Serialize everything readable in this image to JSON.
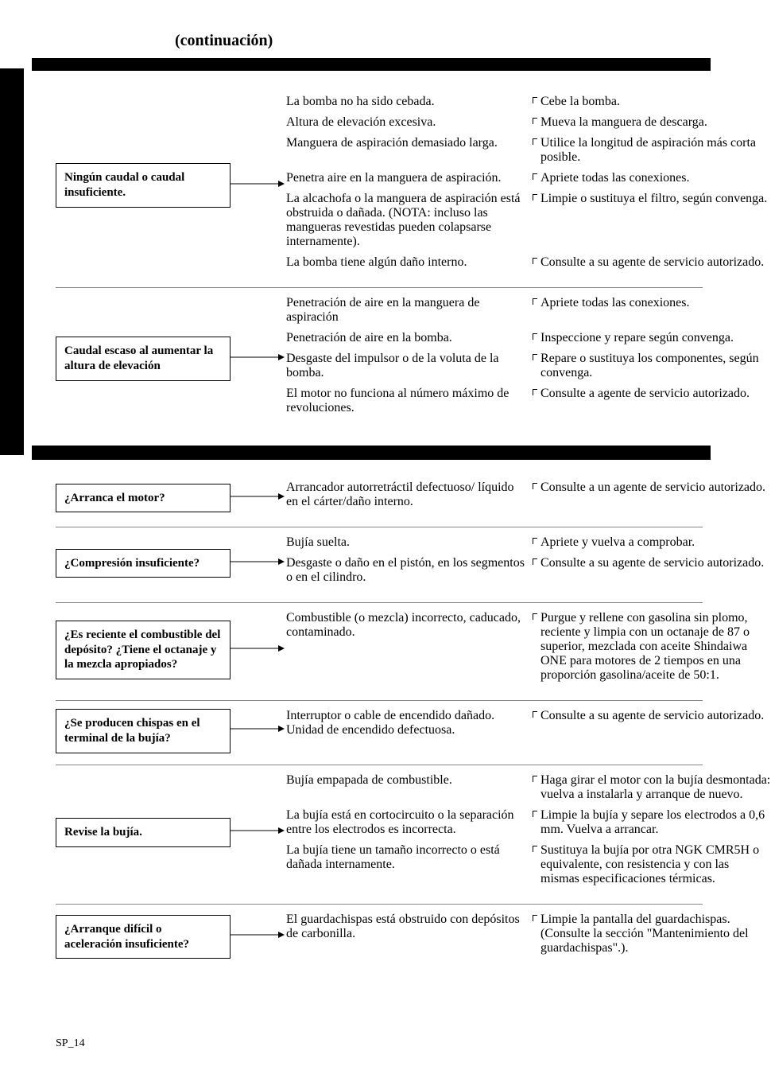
{
  "header": {
    "title": "(continuación)"
  },
  "page_label": "SP_14",
  "colors": {
    "text": "#000000",
    "background": "#ffffff",
    "rule": "#888888",
    "band": "#000000"
  },
  "typography": {
    "body_font": "Times New Roman",
    "body_size_pt": 10,
    "box_bold": true,
    "header_size_pt": 14
  },
  "section1": {
    "groups": [
      {
        "problem": "Ningún caudal o caudal insuficiente.",
        "pairs": [
          {
            "cause": "La bomba no ha sido cebada.",
            "remedy": "Cebe la bomba."
          },
          {
            "cause": "Altura de elevación excesiva.",
            "remedy": "Mueva la manguera de descarga."
          },
          {
            "cause": "Manguera de aspiración demasiado larga.",
            "remedy": "Utilice la longitud de aspiración más corta posible."
          },
          {
            "cause": "Penetra aire en la manguera de aspiración.",
            "remedy": "Apriete todas las conexiones."
          },
          {
            "cause": "La alcachofa o la manguera de aspiración está obstruida o dañada. (NOTA: incluso las mangueras revestidas pueden colapsarse internamente).",
            "remedy": "Limpie o sustituya el filtro, según convenga."
          },
          {
            "cause": "La bomba tiene algún daño interno.",
            "remedy": "Consulte a su agente de servicio autorizado."
          }
        ]
      },
      {
        "problem": "Caudal escaso al aumentar la altura de elevación",
        "pairs": [
          {
            "cause": "Penetración de aire en la manguera de aspiración",
            "remedy": "Apriete todas las conexiones."
          },
          {
            "cause": "Penetración de aire en la bomba.",
            "remedy": "Inspeccione y repare según convenga."
          },
          {
            "cause": "Desgaste del impulsor o de la voluta de la bomba.",
            "remedy": "Repare o sustituya los componentes, según convenga."
          },
          {
            "cause": "El motor no funciona al número máximo de revoluciones.",
            "remedy": "Consulte a agente de servicio autorizado."
          }
        ]
      }
    ]
  },
  "section2": {
    "groups": [
      {
        "problem": "¿Arranca el motor?",
        "pairs": [
          {
            "cause": "Arrancador autorretráctil defectuoso/ líquido en el cárter/daño interno.",
            "remedy": "Consulte a un agente de servicio autorizado."
          }
        ]
      },
      {
        "problem": "¿Compresión insuficiente?",
        "pairs": [
          {
            "cause": "Bujía suelta.",
            "remedy": "Apriete y vuelva a comprobar."
          },
          {
            "cause": "Desgaste o daño en el pistón, en los segmentos o en el cilindro.",
            "remedy": "Consulte a su agente de servicio autorizado."
          }
        ]
      },
      {
        "problem": "¿Es reciente el combustible del depósito? ¿Tiene el octanaje y la mezcla apropiados?",
        "pairs": [
          {
            "cause": "Combustible (o mezcla) incorrecto, caducado, contaminado.",
            "remedy": "Purgue y rellene con gasolina sin plomo, reciente y limpia con un octanaje de 87 o superior, mezclada con aceite Shindaiwa ONE para motores de 2 tiempos en una proporción gasolina/aceite de 50:1."
          }
        ]
      },
      {
        "problem": "¿Se producen chispas en el terminal de la bujía?",
        "pairs": [
          {
            "cause": "Interruptor o cable de encendido dañado. Unidad de encendido defectuosa.",
            "remedy": "Consulte a su agente de servicio autorizado."
          }
        ]
      },
      {
        "problem": "Revise la bujía.",
        "pairs": [
          {
            "cause": "Bujía empapada de combustible.",
            "remedy": "Haga girar el motor con la bujía desmontada: vuelva a instalarla y arranque de nuevo."
          },
          {
            "cause": "La bujía está en cortocircuito o la separación entre los electrodos es incorrecta.",
            "remedy": "Limpie la bujía y separe los electrodos a  0,6 mm. Vuelva a arrancar."
          },
          {
            "cause": "La bujía tiene un tamaño incorrecto o está dañada internamente.",
            "remedy": "Sustituya la bujía por otra NGK CMR5H o equivalente, con resistencia y con las mismas especificaciones térmicas."
          }
        ]
      },
      {
        "problem": "¿Arranque difícil o aceleración insuficiente?",
        "pairs": [
          {
            "cause": "El guardachispas está obstruido con depósitos de carbonilla.",
            "remedy": "Limpie la pantalla del guardachispas. (Consulte la sección \"Mantenimiento del guardachispas\".)."
          }
        ]
      }
    ]
  }
}
